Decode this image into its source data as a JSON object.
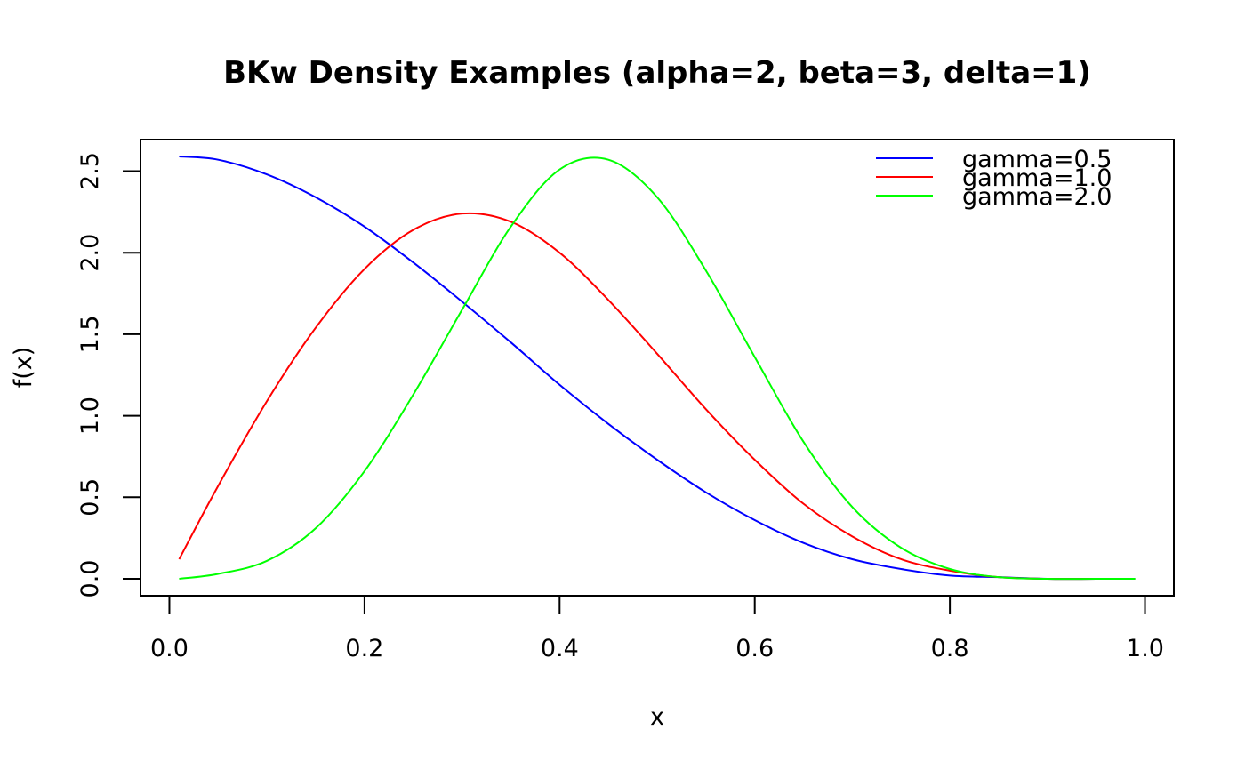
{
  "chart_data": {
    "type": "line",
    "title": "BKw Density Examples (alpha=2, beta=3, delta=1)",
    "xlabel": "x",
    "ylabel": "f(x)",
    "xlim": [
      -0.0296,
      1.0296
    ],
    "ylim": [
      -0.1036,
      2.6936
    ],
    "x_ticks": [
      0.0,
      0.2,
      0.4,
      0.6,
      0.8,
      1.0
    ],
    "x_tick_labels": [
      "0.0",
      "0.2",
      "0.4",
      "0.6",
      "0.8",
      "1.0"
    ],
    "y_ticks": [
      0.0,
      0.5,
      1.0,
      1.5,
      2.0,
      2.5
    ],
    "y_tick_labels": [
      "0.0",
      "0.5",
      "1.0",
      "1.5",
      "2.0",
      "2.5"
    ],
    "grid": false,
    "legend_position": "top-right",
    "x": [
      0.01,
      0.05,
      0.1,
      0.15,
      0.2,
      0.25,
      0.3,
      0.35,
      0.4,
      0.45,
      0.5,
      0.55,
      0.6,
      0.65,
      0.7,
      0.75,
      0.8,
      0.85,
      0.9,
      0.95,
      0.99
    ],
    "series": [
      {
        "name": "gamma=0.5",
        "color": "#0000ff",
        "values": [
          2.59,
          2.57,
          2.48,
          2.34,
          2.16,
          1.94,
          1.7,
          1.45,
          1.19,
          0.95,
          0.73,
          0.53,
          0.36,
          0.22,
          0.12,
          0.06,
          0.02,
          0.01,
          0.0,
          0.0,
          0.0
        ]
      },
      {
        "name": "gamma=1.0",
        "color": "#ff0000",
        "values": [
          0.12,
          0.57,
          1.09,
          1.54,
          1.9,
          2.14,
          2.24,
          2.19,
          2.0,
          1.71,
          1.38,
          1.04,
          0.73,
          0.46,
          0.26,
          0.12,
          0.05,
          0.01,
          0.0,
          0.0,
          0.0
        ]
      },
      {
        "name": "gamma=2.0",
        "color": "#00ff00",
        "values": [
          0.0,
          0.03,
          0.11,
          0.31,
          0.66,
          1.13,
          1.65,
          2.16,
          2.51,
          2.57,
          2.34,
          1.89,
          1.36,
          0.84,
          0.44,
          0.19,
          0.06,
          0.01,
          0.0,
          0.0,
          0.0
        ]
      }
    ]
  }
}
